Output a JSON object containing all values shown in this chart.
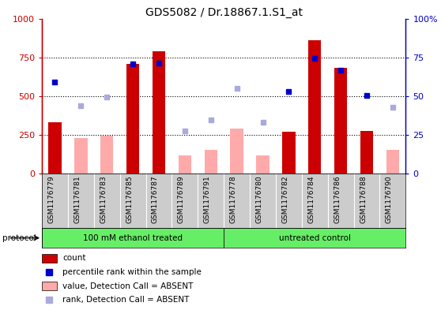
{
  "title": "GDS5082 / Dr.18867.1.S1_at",
  "samples": [
    "GSM1176779",
    "GSM1176781",
    "GSM1176783",
    "GSM1176785",
    "GSM1176787",
    "GSM1176789",
    "GSM1176791",
    "GSM1176778",
    "GSM1176780",
    "GSM1176782",
    "GSM1176784",
    "GSM1176786",
    "GSM1176788",
    "GSM1176790"
  ],
  "count_values": [
    330,
    null,
    null,
    710,
    790,
    null,
    null,
    null,
    null,
    270,
    860,
    680,
    275,
    null
  ],
  "count_absent": [
    null,
    230,
    245,
    null,
    null,
    115,
    155,
    290,
    120,
    null,
    null,
    null,
    null,
    155
  ],
  "rank_present": [
    59,
    null,
    null,
    71,
    71.5,
    null,
    null,
    null,
    null,
    53,
    74.5,
    66.5,
    50.5,
    null
  ],
  "rank_absent": [
    null,
    44,
    49.5,
    null,
    null,
    27.5,
    34.5,
    55,
    33,
    null,
    null,
    null,
    null,
    43
  ],
  "protocol_groups": [
    {
      "label": "100 mM ethanol treated",
      "start": 0,
      "end": 7
    },
    {
      "label": "untreated control",
      "start": 7,
      "end": 14
    }
  ],
  "ylim_left": [
    0,
    1000
  ],
  "ylim_right": [
    0,
    100
  ],
  "yticks_left": [
    0,
    250,
    500,
    750,
    1000
  ],
  "yticks_right": [
    0,
    25,
    50,
    75,
    100
  ],
  "ytick_labels_left": [
    "0",
    "250",
    "500",
    "750",
    "1000"
  ],
  "ytick_labels_right": [
    "0",
    "25",
    "50",
    "75",
    "100%"
  ],
  "bar_color_present": "#cc0000",
  "bar_color_absent": "#ffaaaa",
  "dot_color_present": "#0000cc",
  "dot_color_absent": "#aaaadd",
  "bg_color": "#cccccc",
  "protocol_color": "#66ee66",
  "legend_items": [
    {
      "label": "count",
      "color": "#cc0000",
      "type": "bar"
    },
    {
      "label": "percentile rank within the sample",
      "color": "#0000cc",
      "type": "dot"
    },
    {
      "label": "value, Detection Call = ABSENT",
      "color": "#ffaaaa",
      "type": "bar"
    },
    {
      "label": "rank, Detection Call = ABSENT",
      "color": "#aaaadd",
      "type": "dot"
    }
  ]
}
